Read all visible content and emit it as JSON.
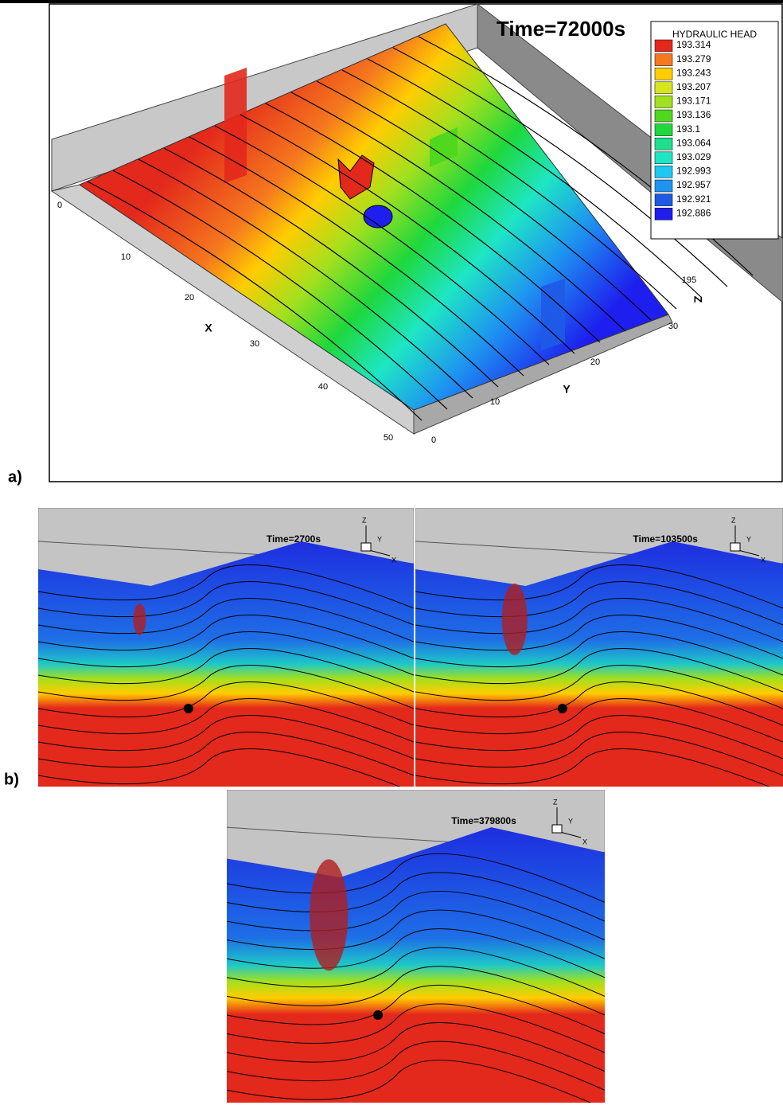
{
  "panel_a": {
    "label": "a)",
    "time": "Time=72000s",
    "legend": {
      "title": "HYDRAULIC HEAD",
      "levels": [
        {
          "value": "193.314",
          "color": "#e3281c"
        },
        {
          "value": "193.279",
          "color": "#f5781e"
        },
        {
          "value": "193.243",
          "color": "#ffcc00"
        },
        {
          "value": "193.207",
          "color": "#d6e61e"
        },
        {
          "value": "193.171",
          "color": "#a3e01e"
        },
        {
          "value": "193.136",
          "color": "#4fd81e"
        },
        {
          "value": "193.1",
          "color": "#1ed83c"
        },
        {
          "value": "193.064",
          "color": "#1ee08c"
        },
        {
          "value": "193.029",
          "color": "#1ee6c4"
        },
        {
          "value": "192.993",
          "color": "#1ec8f0"
        },
        {
          "value": "192.957",
          "color": "#1e94f0"
        },
        {
          "value": "192.921",
          "color": "#1e5ae6"
        },
        {
          "value": "192.886",
          "color": "#1e1eee"
        }
      ]
    },
    "axes": {
      "x": {
        "title": "X",
        "ticks": [
          "0",
          "10",
          "20",
          "30",
          "40",
          "50"
        ]
      },
      "y": {
        "title": "Y",
        "ticks": [
          "0",
          "10",
          "20",
          "30"
        ]
      },
      "z": {
        "title": "Z",
        "ticks": [
          "195"
        ]
      }
    }
  },
  "panel_b": {
    "label": "b)",
    "frames": [
      {
        "time": "Time=2700s",
        "triad": {
          "z": "Z",
          "y": "Y",
          "x": "X"
        }
      },
      {
        "time": "Time=103500s",
        "triad": {
          "z": "Z",
          "y": "Y",
          "x": "X"
        }
      },
      {
        "time": "Time=379800s",
        "triad": {
          "z": "Z",
          "y": "Y",
          "x": "X"
        }
      }
    ]
  }
}
